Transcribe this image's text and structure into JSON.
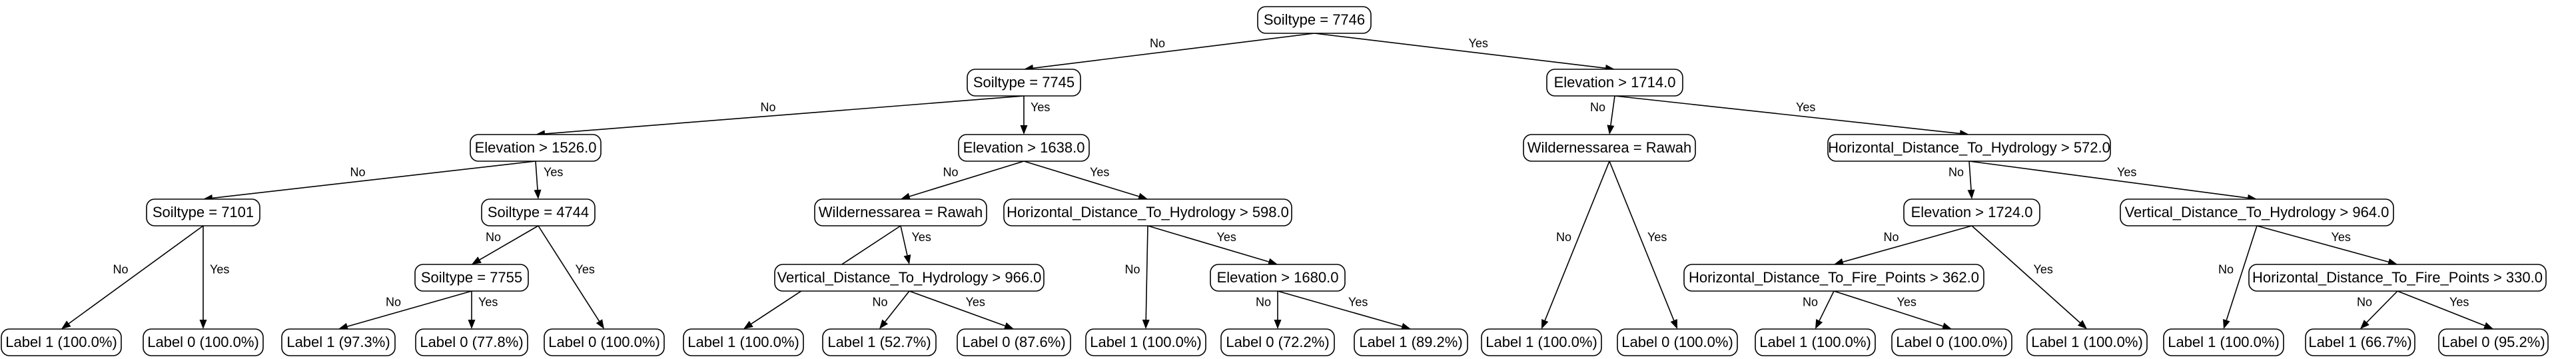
{
  "tree": {
    "nodes": [
      {
        "id": "n0",
        "text": "Soiltype = 7746"
      },
      {
        "id": "n1",
        "text": "Soiltype = 7745"
      },
      {
        "id": "n2",
        "text": "Elevation > 1714.0"
      },
      {
        "id": "n3",
        "text": "Elevation > 1526.0"
      },
      {
        "id": "n4",
        "text": "Elevation > 1638.0"
      },
      {
        "id": "n5",
        "text": "Wildernessarea = Rawah"
      },
      {
        "id": "n6",
        "text": "Horizontal_Distance_To_Hydrology > 572.0"
      },
      {
        "id": "n7",
        "text": "Soiltype = 7101"
      },
      {
        "id": "n8",
        "text": "Soiltype = 4744"
      },
      {
        "id": "n9",
        "text": "Wildernessarea = Rawah"
      },
      {
        "id": "n10",
        "text": "Horizontal_Distance_To_Hydrology > 598.0"
      },
      {
        "id": "n11",
        "text": "Elevation > 1724.0"
      },
      {
        "id": "n12",
        "text": "Vertical_Distance_To_Hydrology > 964.0"
      },
      {
        "id": "n13",
        "text": "Soiltype = 7755"
      },
      {
        "id": "n14",
        "text": "Vertical_Distance_To_Hydrology > 966.0"
      },
      {
        "id": "n15",
        "text": "Elevation > 1680.0"
      },
      {
        "id": "n16",
        "text": "Horizontal_Distance_To_Fire_Points > 362.0"
      },
      {
        "id": "n17",
        "text": "Horizontal_Distance_To_Fire_Points > 330.0"
      },
      {
        "id": "l0",
        "text": "Label 1 (100.0%)"
      },
      {
        "id": "l1",
        "text": "Label 0 (100.0%)"
      },
      {
        "id": "l2",
        "text": "Label 1 (97.3%)"
      },
      {
        "id": "l3",
        "text": "Label 0 (77.8%)"
      },
      {
        "id": "l4",
        "text": "Label 0 (100.0%)"
      },
      {
        "id": "l5",
        "text": "Label 1 (100.0%)"
      },
      {
        "id": "l6",
        "text": "Label 1 (52.7%)"
      },
      {
        "id": "l7",
        "text": "Label 0 (87.6%)"
      },
      {
        "id": "l8",
        "text": "Label 1 (100.0%)"
      },
      {
        "id": "l9",
        "text": "Label 0 (72.2%)"
      },
      {
        "id": "l10",
        "text": "Label 1 (89.2%)"
      },
      {
        "id": "l11",
        "text": "Label 1 (100.0%)"
      },
      {
        "id": "l12",
        "text": "Label 0 (100.0%)"
      },
      {
        "id": "l13",
        "text": "Label 1 (100.0%)"
      },
      {
        "id": "l14",
        "text": "Label 0 (100.0%)"
      },
      {
        "id": "l15",
        "text": "Label 1 (100.0%)"
      },
      {
        "id": "l16",
        "text": "Label 1 (100.0%)"
      },
      {
        "id": "l17",
        "text": "Label 1 (66.7%)"
      },
      {
        "id": "l18",
        "text": "Label 0 (95.2%)"
      }
    ],
    "edges": [
      {
        "from": "n0",
        "to": "n1",
        "label": "No"
      },
      {
        "from": "n0",
        "to": "n2",
        "label": "Yes"
      },
      {
        "from": "n1",
        "to": "n3",
        "label": "No"
      },
      {
        "from": "n1",
        "to": "n4",
        "label": "Yes"
      },
      {
        "from": "n2",
        "to": "n5",
        "label": "No"
      },
      {
        "from": "n2",
        "to": "n6",
        "label": "Yes"
      },
      {
        "from": "n3",
        "to": "n7",
        "label": "No"
      },
      {
        "from": "n3",
        "to": "n8",
        "label": "Yes"
      },
      {
        "from": "n4",
        "to": "n9",
        "label": "No"
      },
      {
        "from": "n4",
        "to": "n10",
        "label": "Yes"
      },
      {
        "from": "n5",
        "to": "l11",
        "label": "No"
      },
      {
        "from": "n5",
        "to": "l12",
        "label": "Yes"
      },
      {
        "from": "n6",
        "to": "n11",
        "label": "No"
      },
      {
        "from": "n6",
        "to": "n12",
        "label": "Yes"
      },
      {
        "from": "n7",
        "to": "l0",
        "label": "No"
      },
      {
        "from": "n7",
        "to": "l1",
        "label": "Yes"
      },
      {
        "from": "n8",
        "to": "n13",
        "label": "No"
      },
      {
        "from": "n8",
        "to": "l4",
        "label": "Yes"
      },
      {
        "from": "n9",
        "to": "l5",
        "label": "No"
      },
      {
        "from": "n9",
        "to": "n14",
        "label": "Yes"
      },
      {
        "from": "n10",
        "to": "l8",
        "label": "No"
      },
      {
        "from": "n10",
        "to": "n15",
        "label": "Yes"
      },
      {
        "from": "n11",
        "to": "n16",
        "label": "No"
      },
      {
        "from": "n11",
        "to": "l15",
        "label": "Yes"
      },
      {
        "from": "n12",
        "to": "l16",
        "label": "No"
      },
      {
        "from": "n12",
        "to": "n17",
        "label": "Yes"
      },
      {
        "from": "n13",
        "to": "l2",
        "label": "No"
      },
      {
        "from": "n13",
        "to": "l3",
        "label": "Yes"
      },
      {
        "from": "n14",
        "to": "l6",
        "label": "No"
      },
      {
        "from": "n14",
        "to": "l7",
        "label": "Yes"
      },
      {
        "from": "n15",
        "to": "l9",
        "label": "No"
      },
      {
        "from": "n15",
        "to": "l10",
        "label": "Yes"
      },
      {
        "from": "n16",
        "to": "l13",
        "label": "No"
      },
      {
        "from": "n16",
        "to": "l14",
        "label": "Yes"
      },
      {
        "from": "n17",
        "to": "l17",
        "label": "No"
      },
      {
        "from": "n17",
        "to": "l18",
        "label": "Yes"
      }
    ]
  }
}
